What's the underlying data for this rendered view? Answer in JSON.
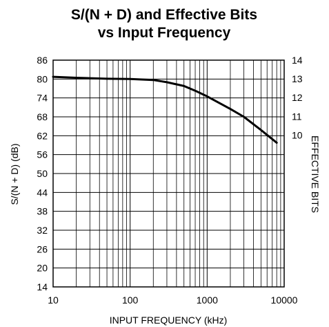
{
  "chart_data": {
    "type": "line",
    "title_line1": "S/(N + D) and Effective Bits",
    "title_line2": "vs Input Frequency",
    "xlabel": "INPUT FREQUENCY (kHz)",
    "ylabel": "S/(N + D) (dB)",
    "y2label": "EFFECTIVE BITS",
    "x_scale": "log",
    "xlim": [
      10,
      10000
    ],
    "ylim": [
      14,
      86
    ],
    "y2lim": [
      1.9,
      14
    ],
    "grid": true,
    "x_ticks": [
      "10",
      "100",
      "1000",
      "10000"
    ],
    "y_ticks": [
      "86",
      "80",
      "74",
      "68",
      "62",
      "56",
      "50",
      "44",
      "38",
      "32",
      "26",
      "20",
      "14"
    ],
    "y2_ticks": [
      "14",
      "13",
      "12",
      "11",
      "10"
    ],
    "series": [
      {
        "x": [
          10,
          20,
          50,
          100,
          200,
          300,
          500,
          700,
          1000,
          2000,
          3000,
          5000,
          8000
        ],
        "y": [
          80.7,
          80.4,
          80.1,
          80.0,
          79.7,
          79.0,
          77.8,
          76.3,
          74.5,
          70.5,
          68.0,
          63.8,
          59.8
        ]
      }
    ]
  }
}
